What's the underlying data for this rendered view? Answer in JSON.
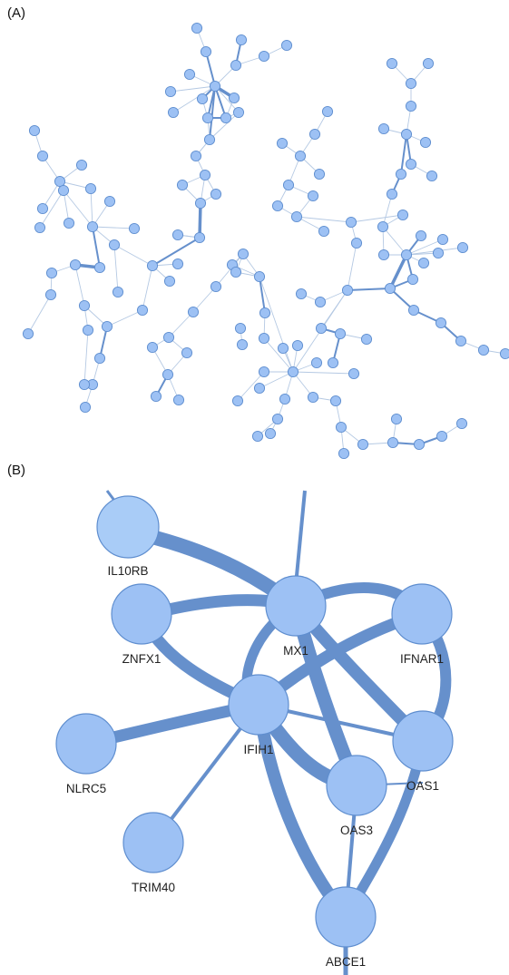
{
  "panels": {
    "a_label": "(A)",
    "b_label": "(B)"
  },
  "colors": {
    "node_fill": "#9dc1f4",
    "node_fill_light": "#a9ccf7",
    "node_stroke": "#5f8ecf",
    "edge": "#6690cc",
    "edge_thin": "#b5c9e3"
  },
  "detail_network": {
    "genes": [
      "IL10RB",
      "ZNFX1",
      "MX1",
      "IFNAR1",
      "NLRC5",
      "IFIH1",
      "OAS1",
      "OAS3",
      "TRIM40",
      "ABCE1"
    ]
  }
}
